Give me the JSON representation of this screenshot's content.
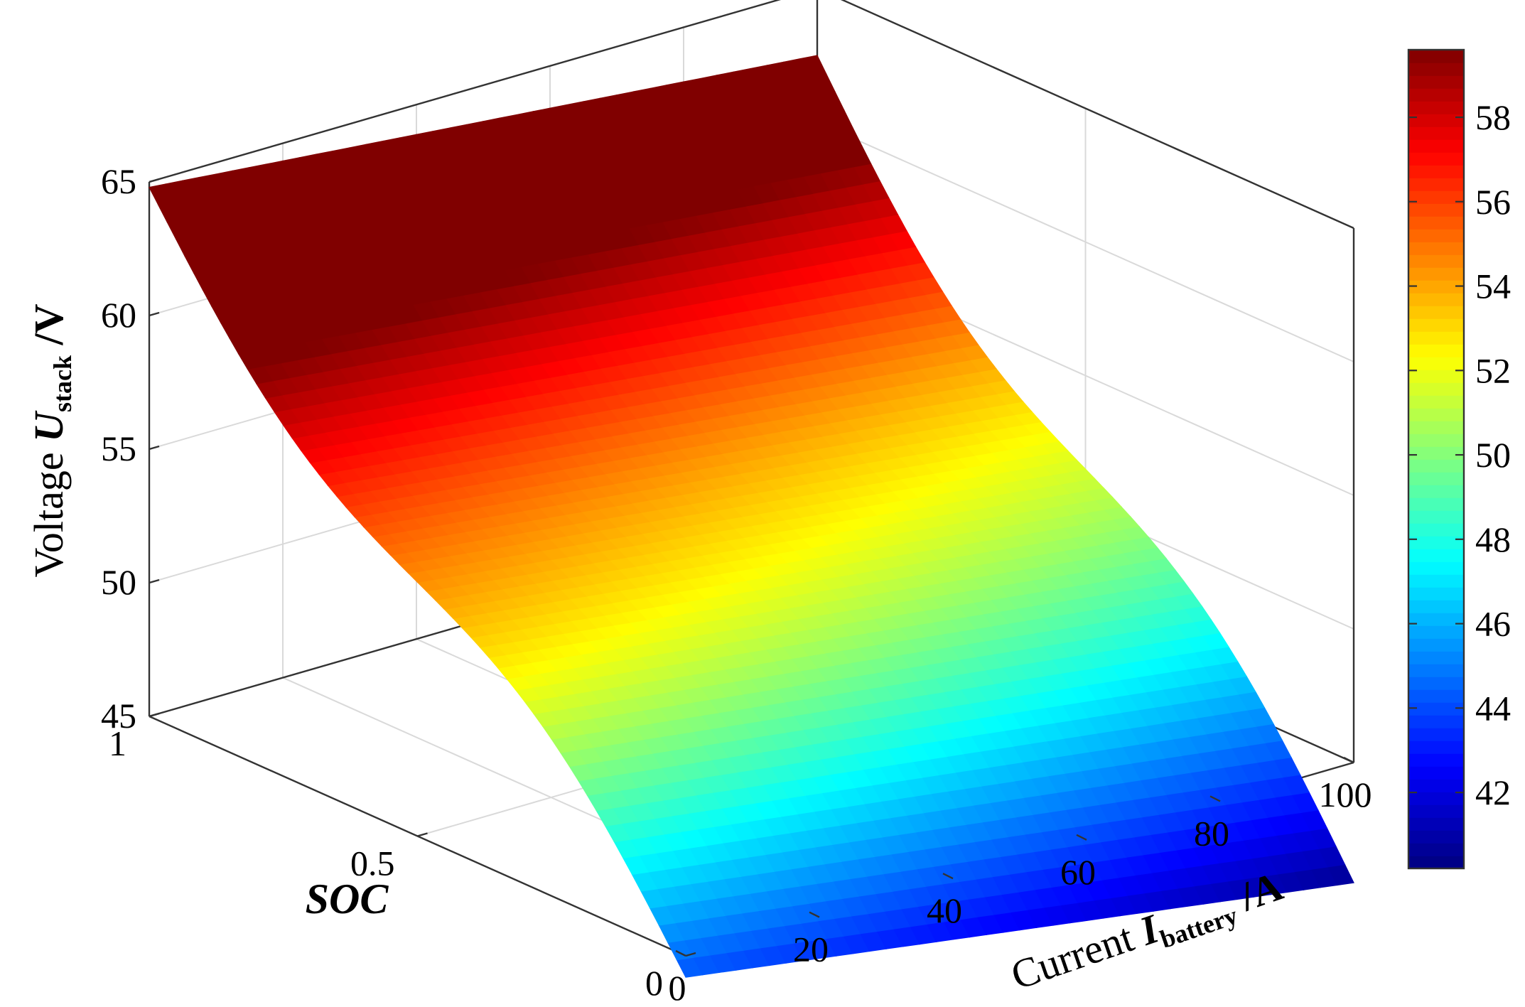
{
  "chart_data": {
    "type": "surface3d",
    "title": "",
    "zlabel": {
      "prefix": "Voltage ",
      "symbol": "U",
      "subscript": "stack",
      "unit": " /V"
    },
    "xlabel": {
      "prefix": "Current ",
      "symbol": "I",
      "subscript": "battery",
      "unit": " /A"
    },
    "ylabel": "SOC",
    "x_ticks": [
      "0",
      "20",
      "40",
      "60",
      "80",
      "100"
    ],
    "y_ticks": [
      "0",
      "0.5",
      "1"
    ],
    "z_ticks": [
      "45",
      "50",
      "55",
      "60",
      "65"
    ],
    "colorbar_ticks": [
      "42",
      "44",
      "46",
      "48",
      "50",
      "52",
      "54",
      "56",
      "58"
    ],
    "xlim": [
      0,
      100
    ],
    "ylim": [
      0,
      1
    ],
    "zlim": [
      45,
      65
    ],
    "clim": [
      40.2,
      59.6
    ],
    "colormap": "jet",
    "grid": true,
    "surface_corners": {
      "current_0_soc_1": 64.8,
      "current_100_soc_1": 62.5,
      "current_0_soc_0": 44.2,
      "current_100_soc_0": 40.5
    }
  }
}
